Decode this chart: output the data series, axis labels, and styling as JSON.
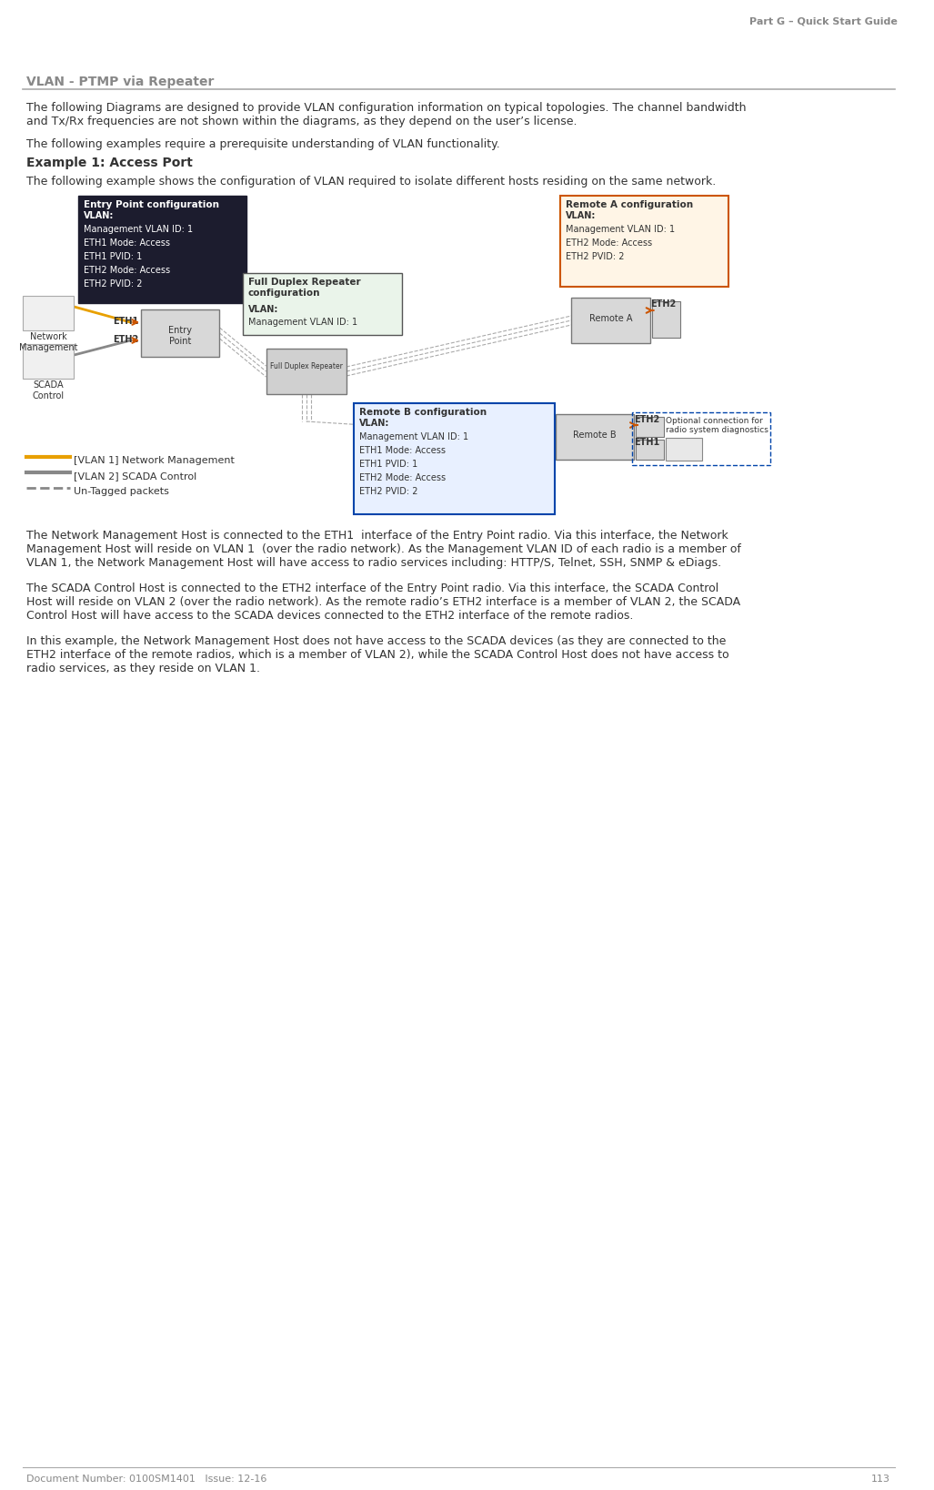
{
  "page_title": "Part G – Quick Start Guide",
  "section_title": "VLAN - PTMP via Repeater",
  "doc_number": "Document Number: 0100SM1401   Issue: 12-16",
  "page_number": "113",
  "para1": "The following Diagrams are designed to provide VLAN configuration information on typical topologies. The channel bandwidth\nand Tx/Rx frequencies are not shown within the diagrams, as they depend on the user’s license.",
  "para2": "The following examples require a prerequisite understanding of VLAN functionality.",
  "example_title": "Example 1: Access Port",
  "example_desc": "The following example shows the configuration of VLAN required to isolate different hosts residing on the same network.",
  "entry_point_box": {
    "title": "Entry Point configuration",
    "lines": [
      "VLAN:",
      "Management VLAN ID: 1",
      "ETH1 Mode: Access",
      "ETH1 PVID: 1",
      "ETH2 Mode: Access",
      "ETH2 PVID: 2"
    ]
  },
  "repeater_box": {
    "title": "Full Duplex Repeater\nconfiguration",
    "lines": [
      "VLAN:",
      "Management VLAN ID: 1"
    ]
  },
  "remote_a_box": {
    "title": "Remote A configuration",
    "lines": [
      "VLAN:",
      "Management VLAN ID: 1",
      "ETH2 Mode: Access",
      "ETH2 PVID: 2"
    ]
  },
  "remote_b_box": {
    "title": "Remote B configuration",
    "lines": [
      "VLAN:",
      "Management VLAN ID: 1",
      "ETH1 Mode: Access",
      "ETH1 PVID: 1",
      "ETH2 Mode: Access",
      "ETH2 PVID: 2"
    ]
  },
  "legend_items": [
    {
      "label": "[VLAN 1] Network Management",
      "color": "#e8a000"
    },
    {
      "label": "[VLAN 2] SCADA Control",
      "color": "#888888"
    },
    {
      "label": "Un-Tagged packets",
      "color": "#888888"
    }
  ],
  "label_network_mgmt": "Network\nManagement",
  "label_scada": "SCADA\nControl",
  "label_eth1_entry": "ETH1",
  "label_eth2_entry": "ETH2",
  "label_eth2_remote_a": "ETH2",
  "label_eth2_remote_b": "ETH2",
  "label_eth1_remote_b": "ETH1",
  "label_optional": "Optional connection for\nradio system diagnostics",
  "label_entry_point": "Entry\nPoint",
  "label_full_duplex": "Full Duplex Repeater",
  "label_remote_a": "Remote A",
  "label_remote_b": "Remote B",
  "para_net_mgmt": "The Network Management Host is connected to the ETH1  interface of the Entry Point radio. Via this interface, the Network\nManagement Host will reside on VLAN 1  (over the radio network). As the Management VLAN ID of each radio is a member of\nVLAN 1, the Network Management Host will have access to radio services including: HTTP/S, Telnet, SSH, SNMP & eDiags.",
  "para_scada": "The SCADA Control Host is connected to the ETH2 interface of the Entry Point radio. Via this interface, the SCADA Control\nHost will reside on VLAN 2 (over the radio network). As the remote radio’s ETH2 interface is a member of VLAN 2, the SCADA\nControl Host will have access to the SCADA devices connected to the ETH2 interface of the remote radios.",
  "para_isolation": "In this example, the Network Management Host does not have access to the SCADA devices (as they are connected to the\nETH2 interface of the remote radios, which is a member of VLAN 2), while the SCADA Control Host does not have access to\nradio services, as they reside on VLAN 1.",
  "bg_color": "#ffffff",
  "text_color": "#333333",
  "title_color": "#888888",
  "section_line_color": "#aaaaaa"
}
